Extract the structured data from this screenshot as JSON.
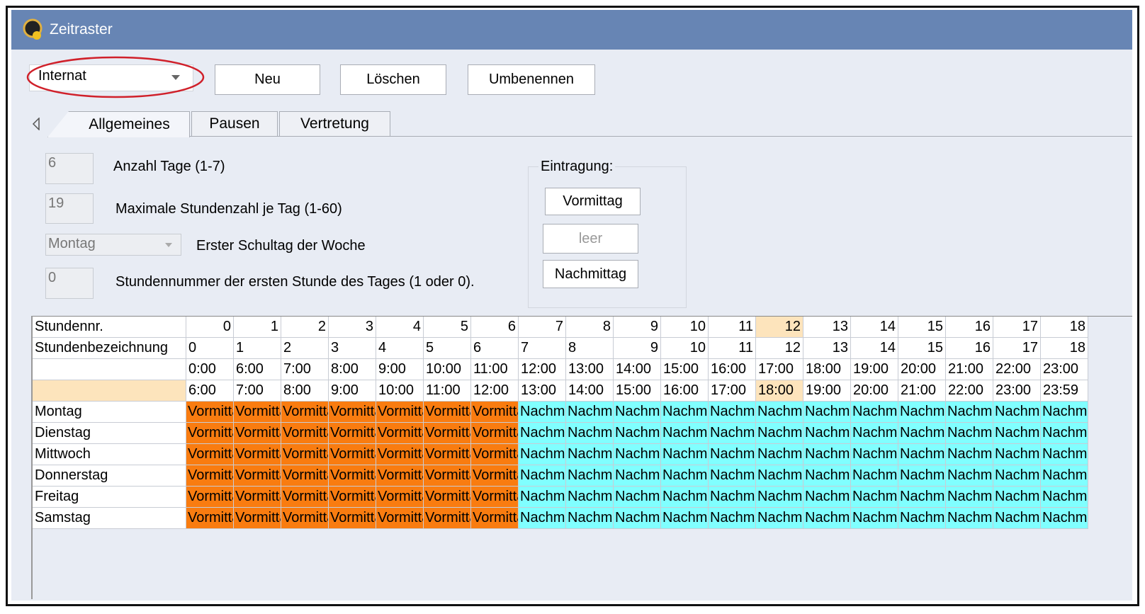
{
  "window": {
    "title": "Zeitraster"
  },
  "toolbar": {
    "selector": "Internat",
    "buttons": [
      "Neu",
      "Löschen",
      "Umbenennen"
    ]
  },
  "tabs": [
    "Allgemeines",
    "Pausen",
    "Vertretung"
  ],
  "settings": {
    "fields": [
      {
        "value": "6",
        "label": "Anzahl Tage (1-7)"
      },
      {
        "value": "19",
        "label": "Maximale Stundenzahl je Tag (1-60)"
      },
      {
        "value": "Montag",
        "label": "Erster Schultag der Woche"
      },
      {
        "value": "0",
        "label": "Stundennummer der ersten Stunde des Tages (1 oder 0)."
      }
    ]
  },
  "entry": {
    "title": "Eintragung:",
    "buttons": [
      "Vormittag",
      "leer",
      "Nachmittag"
    ]
  },
  "grid": {
    "header_rows": [
      {
        "label": "Stundennr.",
        "cells": [
          "0",
          "1",
          "2",
          "3",
          "4",
          "5",
          "6",
          "7",
          "8",
          "9",
          "10",
          "11",
          "12",
          "13",
          "14",
          "15",
          "16",
          "17",
          "18"
        ]
      },
      {
        "label": "Stundenbezeichnung",
        "cells": [
          "0",
          "1",
          "2",
          "3",
          "4",
          "5",
          "6",
          "7",
          "8",
          "9",
          "10",
          "11",
          "12",
          "13",
          "14",
          "15",
          "16",
          "17",
          "18"
        ]
      },
      {
        "cells": [
          "0:00",
          "6:00",
          "7:00",
          "8:00",
          "9:00",
          "10:00",
          "11:00",
          "12:00",
          "13:00",
          "14:00",
          "15:00",
          "16:00",
          "17:00",
          "18:00",
          "19:00",
          "20:00",
          "21:00",
          "22:00",
          "23:00"
        ]
      },
      {
        "cells": [
          "6:00",
          "7:00",
          "8:00",
          "9:00",
          "10:00",
          "11:00",
          "12:00",
          "13:00",
          "14:00",
          "15:00",
          "16:00",
          "17:00",
          "18:00",
          "19:00",
          "20:00",
          "21:00",
          "22:00",
          "23:00",
          "23:59"
        ]
      }
    ],
    "day_rows": [
      {
        "label": "Montag",
        "cells": [
          "Vormittag",
          "Vormittag",
          "Vormittag",
          "Vormittag",
          "Vormittag",
          "Vormittag",
          "Vormittag",
          "Nachmittag",
          "Nachmittag",
          "Nachmittag",
          "Nachmittag",
          "Nachmittag",
          "Nachmittag",
          "Nachmittag",
          "Nachmittag",
          "Nachmittag",
          "Nachmittag",
          "Nachmittag",
          "Nachmittag"
        ]
      },
      {
        "label": "Dienstag",
        "cells": [
          "Vormittag",
          "Vormittag",
          "Vormittag",
          "Vormittag",
          "Vormittag",
          "Vormittag",
          "Vormittag",
          "Nachmittag",
          "Nachmittag",
          "Nachmittag",
          "Nachmittag",
          "Nachmittag",
          "Nachmittag",
          "Nachmittag",
          "Nachmittag",
          "Nachmittag",
          "Nachmittag",
          "Nachmittag",
          "Nachmittag"
        ]
      },
      {
        "label": "Mittwoch",
        "cells": [
          "Vormittag",
          "Vormittag",
          "Vormittag",
          "Vormittag",
          "Vormittag",
          "Vormittag",
          "Vormittag",
          "Nachmittag",
          "Nachmittag",
          "Nachmittag",
          "Nachmittag",
          "Nachmittag",
          "Nachmittag",
          "Nachmittag",
          "Nachmittag",
          "Nachmittag",
          "Nachmittag",
          "Nachmittag",
          "Nachmittag"
        ]
      },
      {
        "label": "Donnerstag",
        "cells": [
          "Vormittag",
          "Vormittag",
          "Vormittag",
          "Vormittag",
          "Vormittag",
          "Vormittag",
          "Vormittag",
          "Nachmittag",
          "Nachmittag",
          "Nachmittag",
          "Nachmittag",
          "Nachmittag",
          "Nachmittag",
          "Nachmittag",
          "Nachmittag",
          "Nachmittag",
          "Nachmittag",
          "Nachmittag",
          "Nachmittag"
        ]
      },
      {
        "label": "Freitag",
        "cells": [
          "Vormittag",
          "Vormittag",
          "Vormittag",
          "Vormittag",
          "Vormittag",
          "Vormittag",
          "Vormittag",
          "Nachmittag",
          "Nachmittag",
          "Nachmittag",
          "Nachmittag",
          "Nachmittag",
          "Nachmittag",
          "Nachmittag",
          "Nachmittag",
          "Nachmittag",
          "Nachmittag",
          "Nachmittag",
          "Nachmittag"
        ]
      },
      {
        "label": "Samstag",
        "cells": [
          "Vormittag",
          "Vormittag",
          "Vormittag",
          "Vormittag",
          "Vormittag",
          "Vormittag",
          "Vormittag",
          "Nachmittag",
          "Nachmittag",
          "Nachmittag",
          "Nachmittag",
          "Nachmittag",
          "Nachmittag",
          "Nachmittag",
          "Nachmittag",
          "Nachmittag",
          "Nachmittag",
          "Nachmittag",
          "Nachmittag"
        ]
      }
    ],
    "colors": {
      "Vormittag": "#f97c10",
      "Nachmittag": "#80ffff"
    }
  }
}
